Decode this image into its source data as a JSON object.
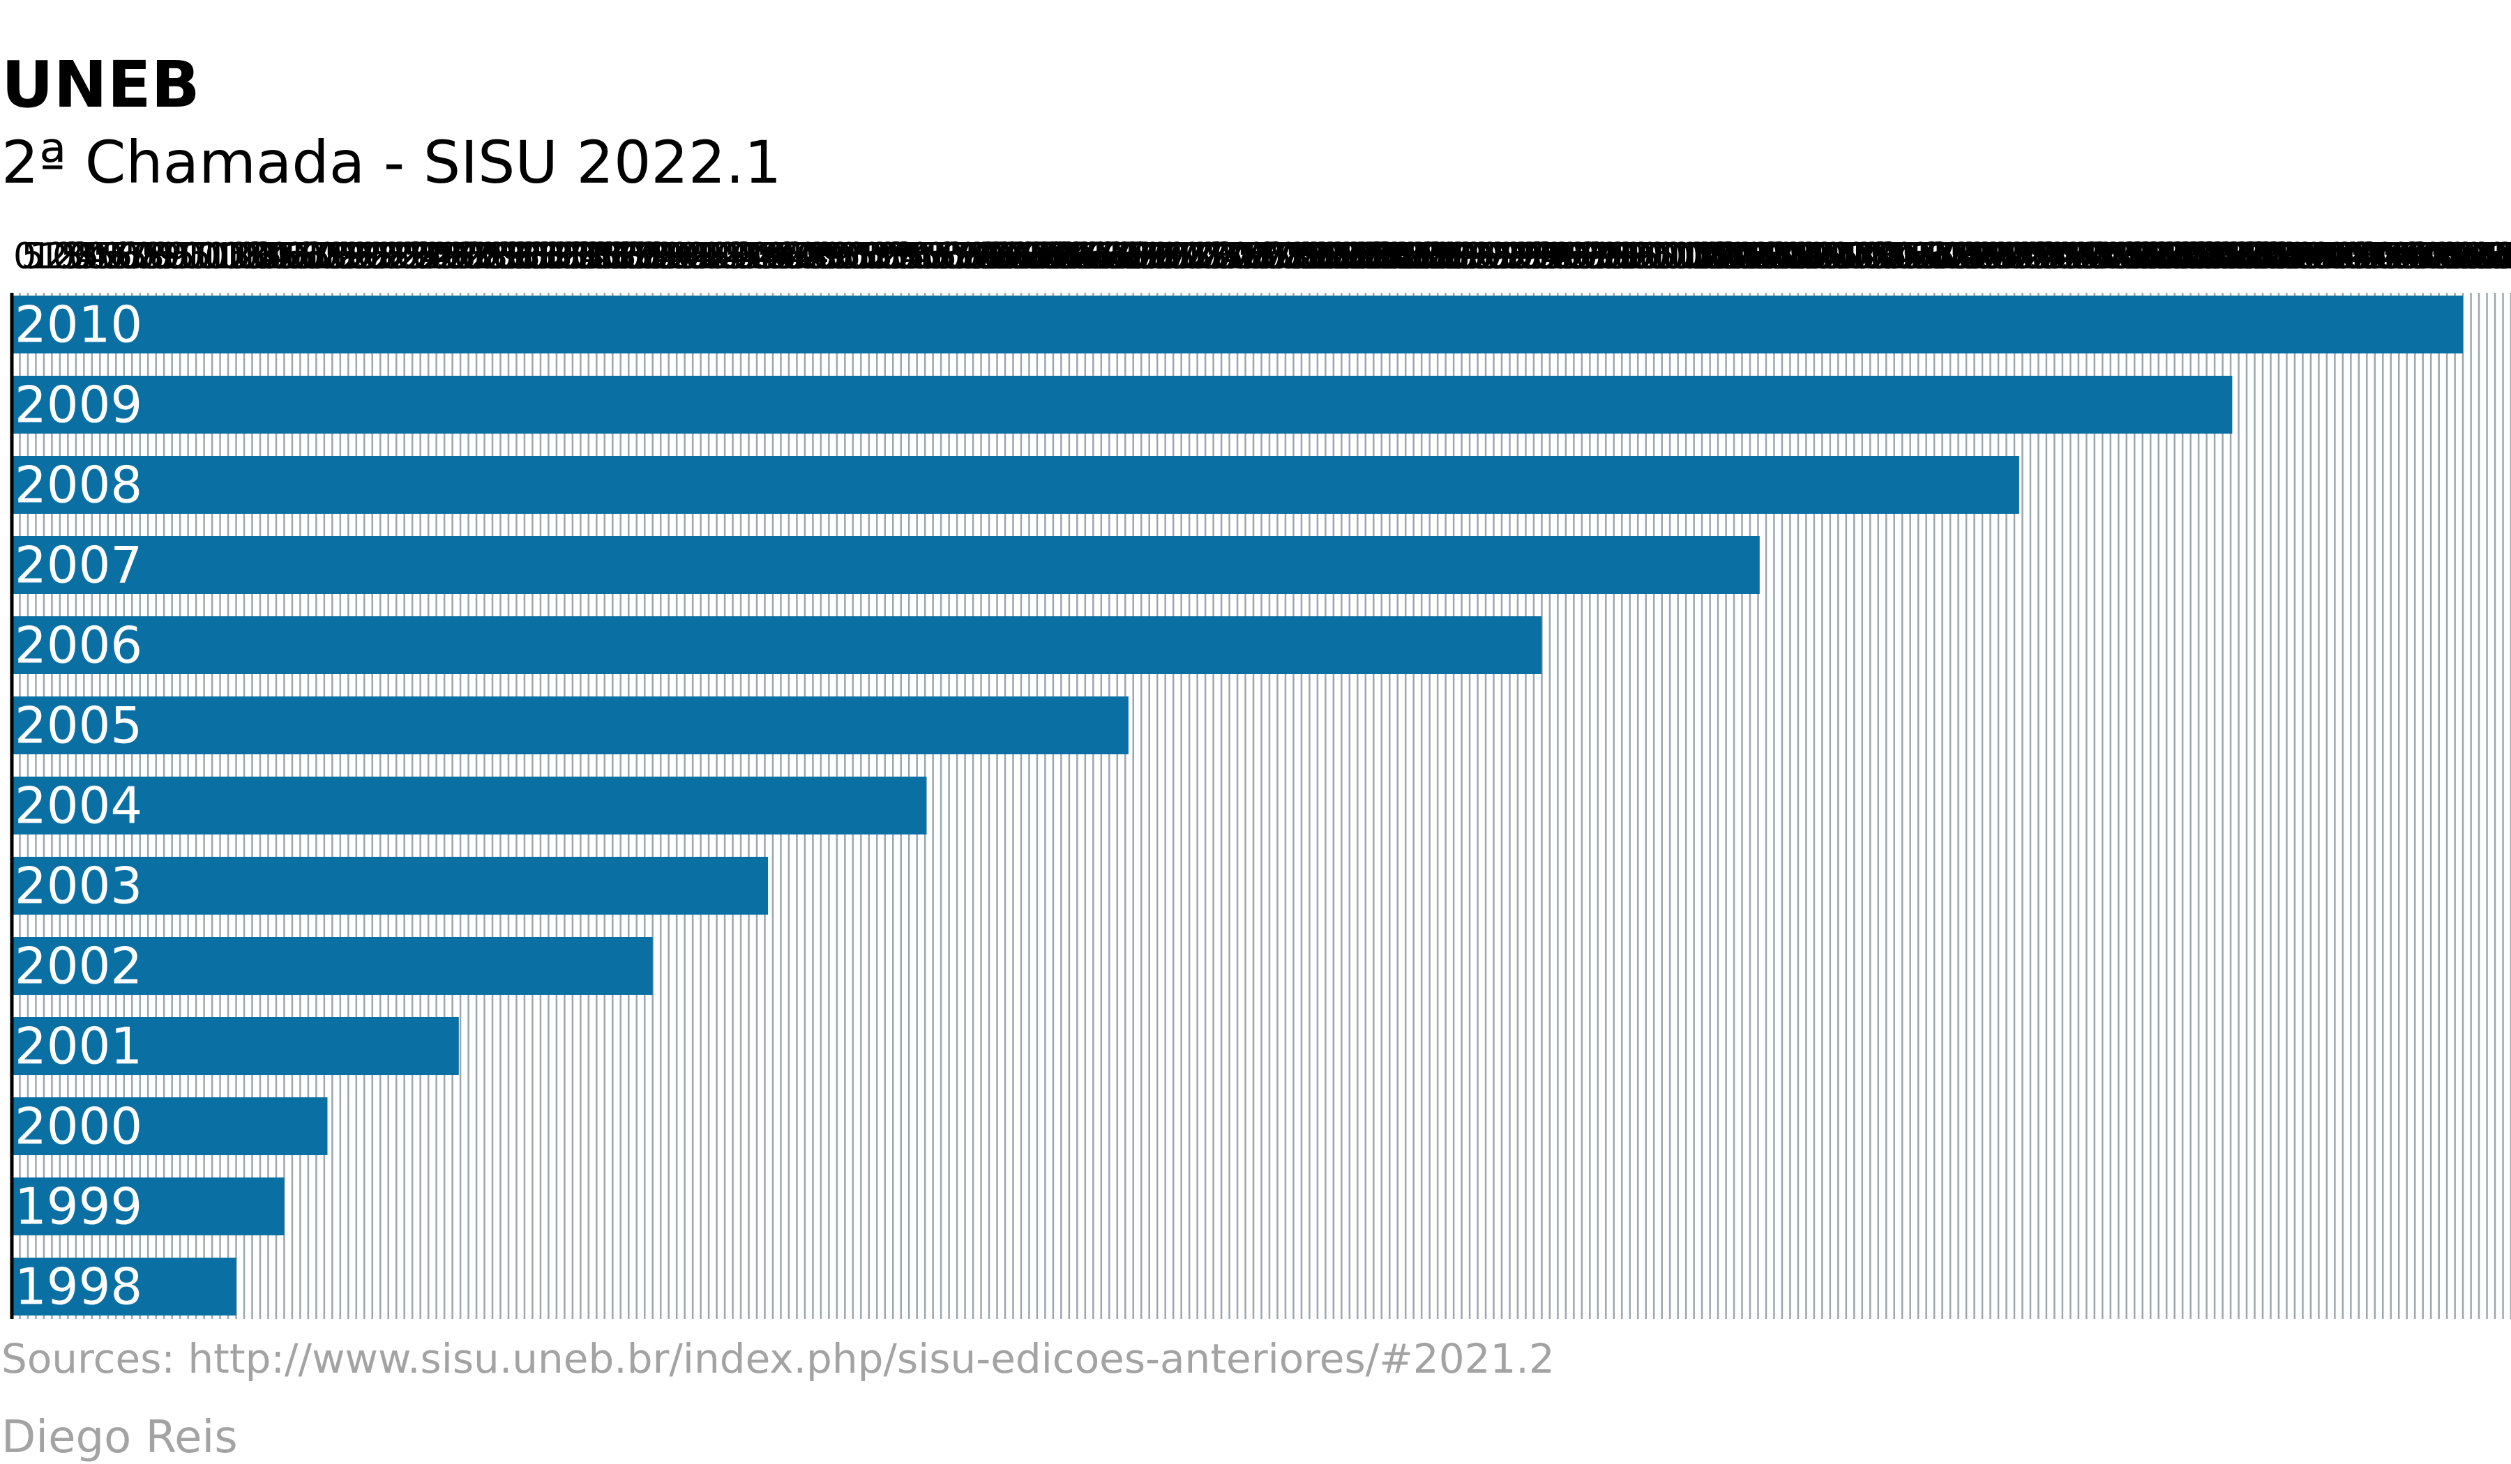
{
  "colors": {
    "bar": "#0a6fa3",
    "grid": "#9aa7b0",
    "axis": "#000000",
    "bar_label": "#ffffff",
    "muted_text": "#a3a3a3"
  },
  "chart_data": {
    "type": "bar",
    "orientation": "horizontal",
    "title": "UNEB",
    "subtitle": "2ª Chamada - SISU 2022.1",
    "source": "Sources: http://www.sisu.uneb.br/index.php/sisu-edicoes-anteriores/#2021.2",
    "author": "Diego Reis",
    "categories": [
      "2010",
      "2009",
      "2008",
      "2007",
      "2006",
      "2005",
      "2004",
      "2003",
      "2002",
      "2001",
      "2000",
      "1999",
      "1998"
    ],
    "values": [
      1530,
      1386,
      1253,
      1091,
      955,
      697,
      571,
      472,
      400,
      279,
      197,
      170,
      140
    ],
    "xlim": [
      0,
      1560
    ],
    "tick_step": 5,
    "grid": true,
    "legend": "none"
  }
}
